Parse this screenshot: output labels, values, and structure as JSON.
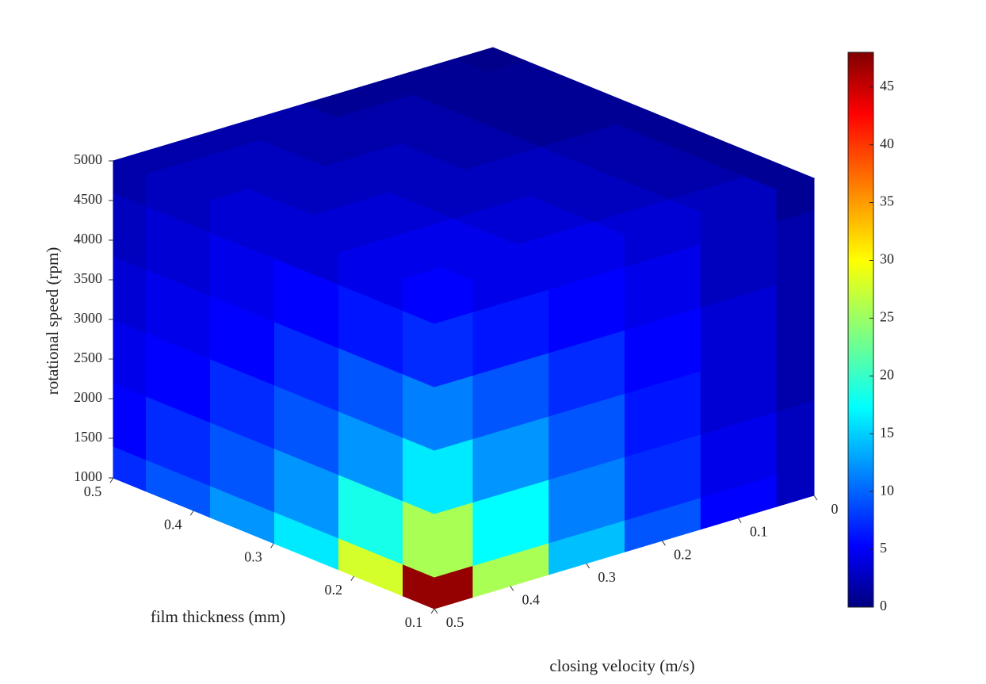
{
  "chart_data": {
    "type": "cube3d",
    "xlabel": "film thickness (mm)",
    "ylabel": "closing velocity (m/s)",
    "zlabel": "rotational speed (rpm)",
    "xlim": [
      0.1,
      0.5
    ],
    "xticks": [
      0.1,
      0.2,
      0.3,
      0.4,
      0.5
    ],
    "ylim": [
      0,
      0.5
    ],
    "yticks": [
      0,
      0.1,
      0.2,
      0.3,
      0.4,
      0.5
    ],
    "zlim": [
      1000,
      5000
    ],
    "zticks": [
      1000,
      1500,
      2000,
      2500,
      3000,
      3500,
      4000,
      4500,
      5000
    ],
    "clim": [
      0,
      48
    ],
    "cticks": [
      0,
      5,
      10,
      15,
      20,
      25,
      30,
      35,
      40,
      45
    ],
    "colormap": "jet",
    "film_thickness": [
      0.1,
      0.18,
      0.26,
      0.34,
      0.42,
      0.5
    ],
    "closing_velocity": [
      0,
      0.1,
      0.2,
      0.3,
      0.4,
      0.5
    ],
    "rotational_speed": [
      1000,
      1800,
      2600,
      3400,
      4200,
      5000
    ],
    "front_left_values": [
      [
        47,
        28,
        17,
        13,
        10,
        8
      ],
      [
        26,
        19,
        13,
        10,
        8,
        6
      ],
      [
        17,
        13,
        10,
        8,
        6,
        5
      ],
      [
        12,
        10,
        8,
        6,
        5,
        4
      ],
      [
        8,
        7,
        6,
        5,
        4,
        3
      ],
      [
        6,
        5,
        4,
        4,
        3,
        2
      ]
    ],
    "front_right_values": [
      [
        3,
        6,
        10,
        15,
        26,
        47
      ],
      [
        3,
        5,
        8,
        12,
        18,
        26
      ],
      [
        2,
        4,
        7,
        10,
        13,
        17
      ],
      [
        2,
        4,
        6,
        8,
        10,
        12
      ],
      [
        2,
        3,
        5,
        6,
        7,
        8
      ],
      [
        1,
        3,
        4,
        5,
        5,
        6
      ]
    ],
    "top_values": [
      [
        1,
        3,
        4,
        5,
        5,
        6
      ],
      [
        1,
        2,
        3,
        4,
        5,
        5
      ],
      [
        1,
        2,
        3,
        3,
        4,
        4
      ],
      [
        1,
        1,
        2,
        3,
        3,
        4
      ],
      [
        1,
        1,
        2,
        2,
        3,
        3
      ],
      [
        0.5,
        1,
        1,
        2,
        2,
        2
      ]
    ]
  }
}
